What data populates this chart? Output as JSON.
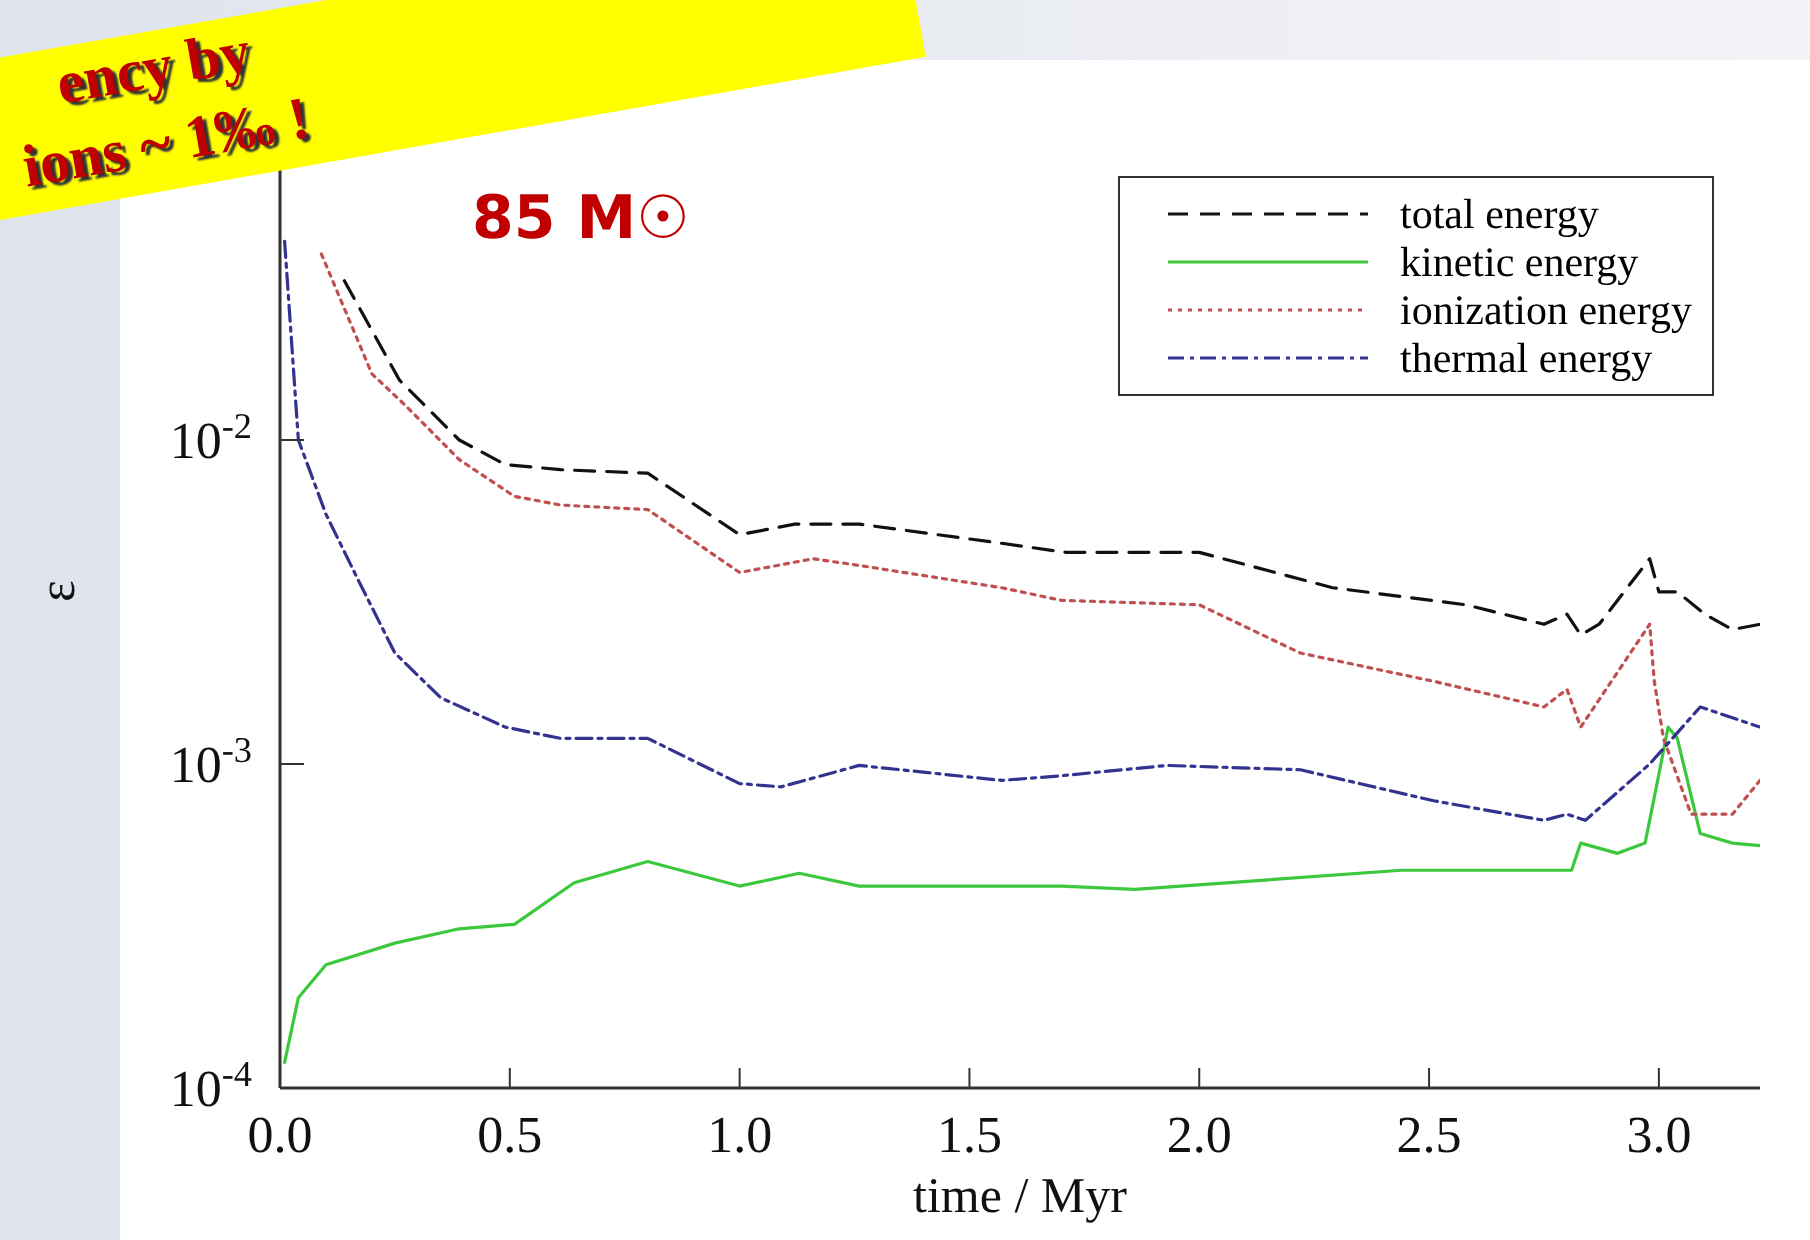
{
  "chart_data": {
    "type": "line",
    "xlabel": "time / Myr",
    "ylabel": "ε",
    "log": true,
    "grid": false,
    "legend": "top right",
    "marker": "none",
    "annotations": [
      "ency by",
      "ions ~ 1‰ !",
      "85 M☉"
    ],
    "xlim": [
      0,
      3.22
    ],
    "xticks": [
      {
        "value": 0,
        "label": "0.0"
      },
      {
        "value": 0.5,
        "label": "0.5"
      },
      {
        "value": 1,
        "label": "1.0"
      },
      {
        "value": 1.5,
        "label": "1.5"
      },
      {
        "value": 2,
        "label": "2.0"
      },
      {
        "value": 2.5,
        "label": "2.5"
      },
      {
        "value": 3,
        "label": "3.0"
      }
    ],
    "ylim": [
      0.0001,
      0.1
    ],
    "yticks": [
      {
        "value": 0.0001,
        "label": "10$^{-4}$"
      },
      {
        "value": 0.001,
        "label": "10$^{-3}$"
      },
      {
        "value": 0.01,
        "label": "10$^{-2}$"
      }
    ],
    "series": [
      {
        "name": "total energy",
        "color": "#111111",
        "line_style": "dashed",
        "x": [
          0.14,
          0.26,
          0.39,
          0.49,
          0.61,
          0.8,
          1.0,
          1.12,
          1.26,
          1.57,
          1.71,
          2.0,
          2.29,
          2.58,
          2.75,
          2.8,
          2.83,
          2.87,
          2.98,
          3.0,
          3.04,
          3.1,
          3.16,
          3.22
        ],
        "values": [
          0.031,
          0.0153,
          0.01,
          0.0084,
          0.0081,
          0.0079,
          0.0051,
          0.0055,
          0.0055,
          0.0048,
          0.0045,
          0.0045,
          0.0035,
          0.0031,
          0.0027,
          0.0029,
          0.0025,
          0.0027,
          0.0043,
          0.0034,
          0.0034,
          0.0029,
          0.0026,
          0.0027
        ]
      },
      {
        "name": "kinetic energy",
        "color": "#3cc83c",
        "line_style": "solid",
        "x": [
          0.01,
          0.04,
          0.1,
          0.25,
          0.39,
          0.51,
          0.64,
          0.8,
          1.0,
          1.13,
          1.26,
          1.7,
          1.86,
          2.44,
          2.81,
          2.83,
          2.91,
          2.97,
          3.0,
          3.02,
          3.04,
          3.09,
          3.16,
          3.22
        ],
        "values": [
          0.00012,
          0.00019,
          0.00024,
          0.00028,
          0.00031,
          0.00032,
          0.00043,
          0.0005,
          0.00042,
          0.00046,
          0.00042,
          0.00042,
          0.00041,
          0.00047,
          0.00047,
          0.00057,
          0.00053,
          0.00057,
          0.00093,
          0.0013,
          0.0012,
          0.00061,
          0.00057,
          0.00056
        ]
      },
      {
        "name": "ionization energy",
        "color": "#c05050",
        "line_style": "dotted",
        "x": [
          0.09,
          0.2,
          0.27,
          0.39,
          0.51,
          0.61,
          0.8,
          1.0,
          1.16,
          1.26,
          1.57,
          1.7,
          2.0,
          2.22,
          2.51,
          2.75,
          2.8,
          2.83,
          2.98,
          2.99,
          3.01,
          3.07,
          3.16,
          3.22
        ],
        "values": [
          0.0375,
          0.016,
          0.0129,
          0.0087,
          0.0067,
          0.0063,
          0.0061,
          0.0039,
          0.0043,
          0.0041,
          0.0035,
          0.0032,
          0.0031,
          0.0022,
          0.0018,
          0.0015,
          0.0017,
          0.0013,
          0.0027,
          0.0018,
          0.0012,
          0.0007,
          0.0007,
          0.00089
        ]
      },
      {
        "name": "thermal energy",
        "color": "#33338f",
        "line_style": "dashdot",
        "x": [
          0.01,
          0.04,
          0.1,
          0.17,
          0.25,
          0.35,
          0.49,
          0.61,
          0.8,
          1.0,
          1.09,
          1.26,
          1.57,
          1.7,
          1.93,
          2.22,
          2.51,
          2.75,
          2.8,
          2.84,
          2.98,
          3.09,
          3.22
        ],
        "values": [
          0.041,
          0.01,
          0.0059,
          0.0037,
          0.0022,
          0.0016,
          0.0013,
          0.0012,
          0.0012,
          0.00087,
          0.00085,
          0.00099,
          0.00089,
          0.00092,
          0.00099,
          0.00096,
          0.00077,
          0.00067,
          0.0007,
          0.00067,
          0.001,
          0.0015,
          0.0013
        ]
      }
    ]
  }
}
